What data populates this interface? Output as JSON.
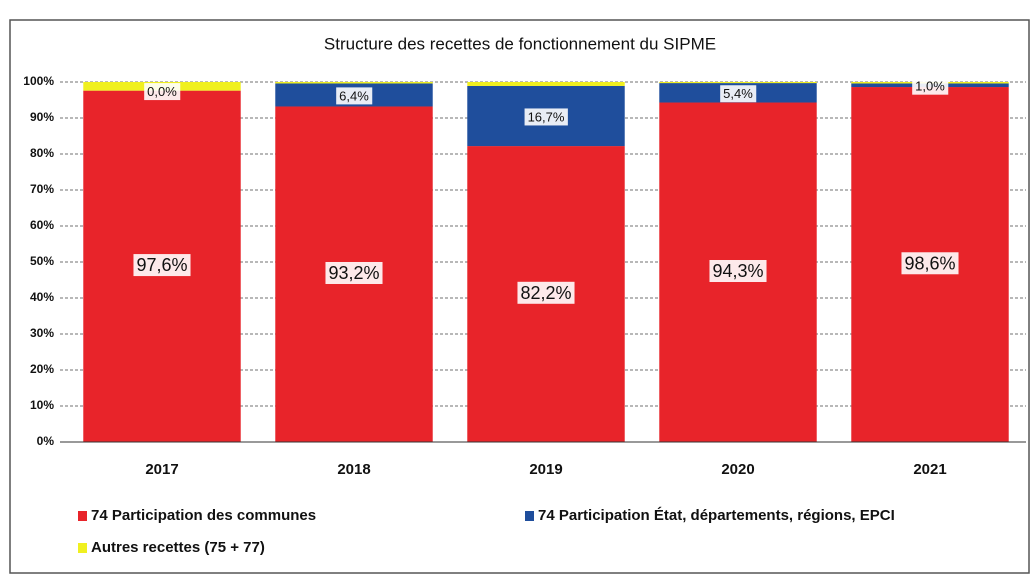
{
  "chart_data": {
    "type": "stacked_bar",
    "title": "Structure des recettes de fonctionnement du SIPME",
    "categories": [
      "2017",
      "2018",
      "2019",
      "2020",
      "2021"
    ],
    "series": [
      {
        "name": "74 Participation des communes",
        "color": "#e8242a",
        "values": [
          97.6,
          93.2,
          82.2,
          94.3,
          98.6
        ],
        "value_labels": [
          "97,6%",
          "93,2%",
          "82,2%",
          "94,3%",
          "98,6%"
        ]
      },
      {
        "name": "74 Participation État, départements, régions, EPCI",
        "color": "#1f4e9c",
        "values": [
          0.0,
          6.4,
          16.7,
          5.4,
          1.0
        ],
        "value_labels": [
          "0,0%",
          "6,4%",
          "16,7%",
          "5,4%",
          "1,0%"
        ]
      },
      {
        "name": "Autres recettes (75 + 77)",
        "color": "#f0f020",
        "values": [
          2.4,
          0.4,
          1.1,
          0.3,
          0.4
        ]
      }
    ],
    "ylim": [
      0,
      100
    ],
    "yticks": [
      {
        "value": 0,
        "label": "0%"
      },
      {
        "value": 10,
        "label": "10%"
      },
      {
        "value": 20,
        "label": "20%"
      },
      {
        "value": 30,
        "label": "30%"
      },
      {
        "value": 40,
        "label": "40%"
      },
      {
        "value": 50,
        "label": "50%"
      },
      {
        "value": 60,
        "label": "60%"
      },
      {
        "value": 70,
        "label": "70%"
      },
      {
        "value": 80,
        "label": "80%"
      },
      {
        "value": 90,
        "label": "90%"
      },
      {
        "value": 100,
        "label": "100%"
      }
    ],
    "grid": true
  }
}
